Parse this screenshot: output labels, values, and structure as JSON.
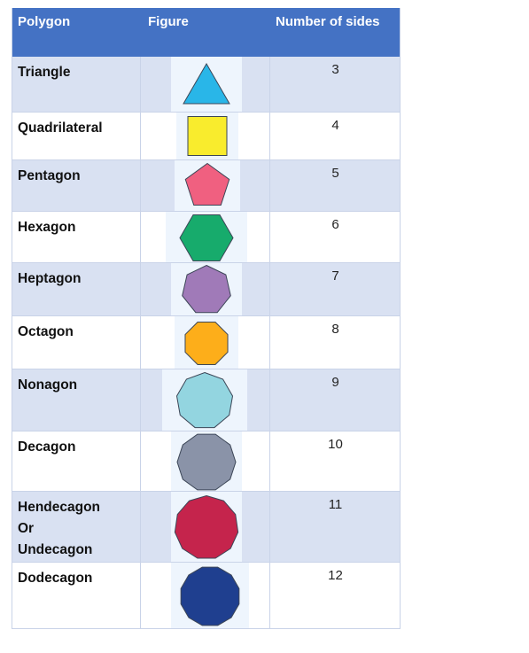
{
  "table": {
    "headers": {
      "polygon": "Polygon",
      "figure": "Figure",
      "sides": "Number of sides"
    },
    "rows": [
      {
        "name": "Triangle",
        "sides": "3",
        "fill": "#29b6e8",
        "shape": "triangle-icon"
      },
      {
        "name": "Quadrilateral",
        "sides": "4",
        "fill": "#f9ec2d",
        "shape": "square-icon"
      },
      {
        "name": "Pentagon",
        "sides": "5",
        "fill": "#f06080",
        "shape": "pentagon-icon"
      },
      {
        "name": "Hexagon",
        "sides": "6",
        "fill": "#17ab6c",
        "shape": "hexagon-icon"
      },
      {
        "name": "Heptagon",
        "sides": "7",
        "fill": "#a07ab8",
        "shape": "heptagon-icon"
      },
      {
        "name": "Octagon",
        "sides": "8",
        "fill": "#fdae1a",
        "shape": "octagon-icon"
      },
      {
        "name": "Nonagon",
        "sides": "9",
        "fill": "#93d5e0",
        "shape": "nonagon-icon"
      },
      {
        "name": "Decagon",
        "sides": "10",
        "fill": "#8a93a8",
        "shape": "decagon-icon"
      },
      {
        "name": "Hendecagon\nOr\nUndecagon",
        "sides": "11",
        "fill": "#c5244c",
        "shape": "hendecagon-icon"
      },
      {
        "name": "Dodecagon",
        "sides": "12",
        "fill": "#1f3f8f",
        "shape": "dodecagon-icon"
      }
    ]
  },
  "colors": {
    "header": "#4472c4",
    "band": "#d9e1f2",
    "stroke": "#3c4657"
  }
}
